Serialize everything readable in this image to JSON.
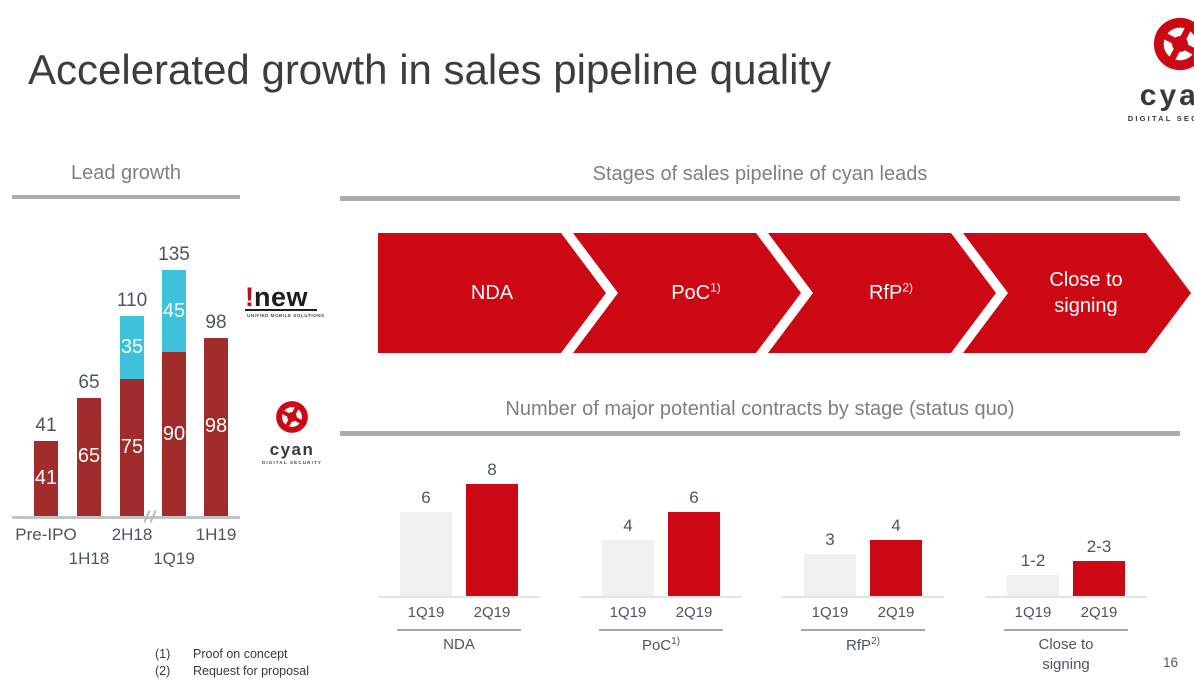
{
  "slide": {
    "title": "Accelerated growth in sales pipeline quality",
    "page_number": "16",
    "footnotes": [
      {
        "marker": "(1)",
        "text": "Proof on concept"
      },
      {
        "marker": "(2)",
        "text": "Request for proposal"
      }
    ]
  },
  "logos": {
    "cyan": {
      "wordmark": "cyan",
      "tagline": "DIGITAL SECURITY"
    },
    "inew": {
      "bang": "!",
      "wordmark": "new",
      "tagline": "UNIFIED MOBILE SOLUTIONS"
    }
  },
  "sections": {
    "lead_growth_heading": "Lead growth",
    "pipeline_heading": "Stages of sales pipeline of cyan leads",
    "contracts_heading": "Number of major potential contracts by stage (status quo)"
  },
  "pipeline_stages": [
    {
      "label": "NDA",
      "sup": ""
    },
    {
      "label": "PoC",
      "sup": "1)"
    },
    {
      "label": "RfP",
      "sup": "2)"
    },
    {
      "label": "Close to signing",
      "sup": ""
    }
  ],
  "colors": {
    "dark_red": "#a02c2c",
    "bright_red": "#cc0814",
    "cyan_bar": "#3ec2db",
    "light_gray_bar": "#f1f0f0",
    "heading_gray": "#7f7f7f",
    "slate_text": "#4c5463"
  },
  "chart_data": [
    {
      "id": "lead_growth",
      "type": "bar",
      "stacked": true,
      "title": "Lead growth",
      "categories": [
        "Pre-IPO",
        "1H18",
        "2H18",
        "1Q19",
        "1H19"
      ],
      "series": [
        {
          "name": "cyan leads",
          "color": "#a02c2c",
          "values": [
            41,
            65,
            75,
            90,
            98
          ]
        },
        {
          "name": "i-new leads",
          "color": "#3ec2db",
          "values": [
            0,
            0,
            35,
            45,
            0
          ]
        }
      ],
      "totals": [
        41,
        65,
        110,
        135,
        98
      ],
      "axis_break_between": [
        "2H18",
        "1Q19"
      ],
      "ylim": [
        0,
        150
      ],
      "legend_position": "none",
      "grid": false
    },
    {
      "id": "contracts_by_stage",
      "type": "bar",
      "title": "Number of major potential contracts by stage (status quo)",
      "periods": [
        "1Q19",
        "2Q19"
      ],
      "period_colors": {
        "1Q19": "#f1f0f0",
        "2Q19": "#cc0814"
      },
      "groups": [
        {
          "stage": "NDA",
          "sup": "",
          "bars": [
            {
              "period": "1Q19",
              "label": "6",
              "value": 6
            },
            {
              "period": "2Q19",
              "label": "8",
              "value": 8
            }
          ]
        },
        {
          "stage": "PoC",
          "sup": "1)",
          "bars": [
            {
              "period": "1Q19",
              "label": "4",
              "value": 4
            },
            {
              "period": "2Q19",
              "label": "6",
              "value": 6
            }
          ]
        },
        {
          "stage": "RfP",
          "sup": "2)",
          "bars": [
            {
              "period": "1Q19",
              "label": "3",
              "value": 3
            },
            {
              "period": "2Q19",
              "label": "4",
              "value": 4
            }
          ]
        },
        {
          "stage": "Close to signing",
          "sup": "",
          "bars": [
            {
              "period": "1Q19",
              "label": "1-2",
              "value": 1.5
            },
            {
              "period": "2Q19",
              "label": "2-3",
              "value": 2.5
            }
          ]
        }
      ],
      "ylim": [
        0,
        9
      ],
      "grid": false
    }
  ]
}
